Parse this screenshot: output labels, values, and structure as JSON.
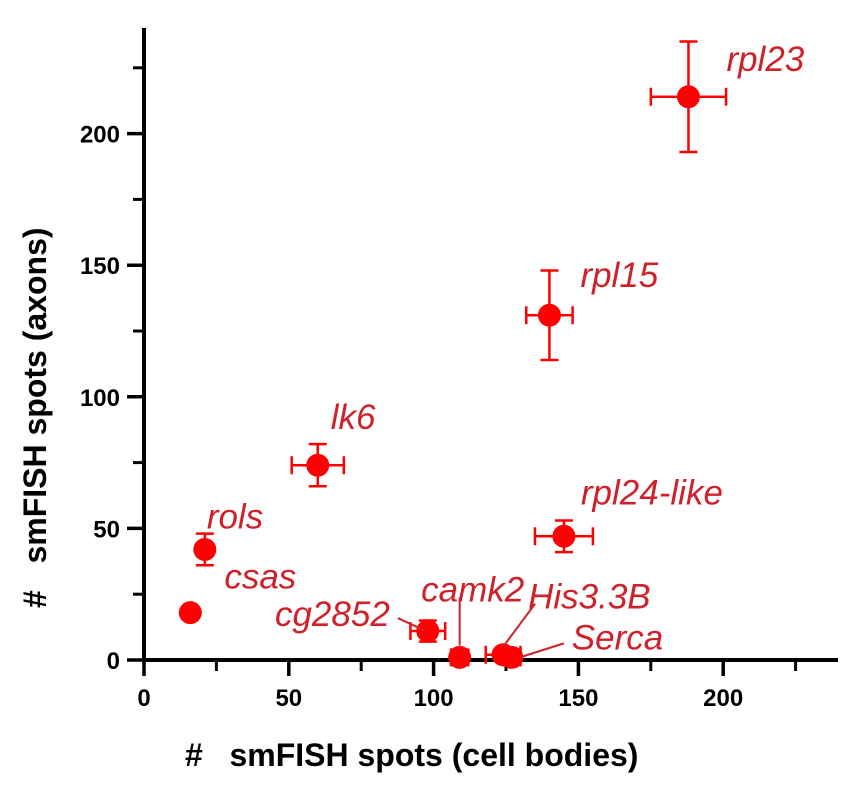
{
  "chart_data": {
    "type": "scatter",
    "title": "",
    "xlabel": "#   smFISH spots (cell bodies)",
    "ylabel": "#   smFISH spots (axons)",
    "xlim": [
      0,
      240
    ],
    "ylim": [
      0,
      240
    ],
    "x_ticks": [
      0,
      50,
      100,
      150,
      200
    ],
    "y_ticks": [
      0,
      50,
      100,
      150,
      200
    ],
    "x_minor_step": 25,
    "y_minor_step": 25,
    "grid": false,
    "point_color": "#ff0000",
    "label_color": "#d0202a",
    "points": [
      {
        "name": "rpl23",
        "x": 188,
        "y": 214,
        "x_err": 13,
        "y_err": 21
      },
      {
        "name": "rpl15",
        "x": 140,
        "y": 131,
        "x_err": 8,
        "y_err": 17
      },
      {
        "name": "lk6",
        "x": 60,
        "y": 74,
        "x_err": 9,
        "y_err": 8
      },
      {
        "name": "rpl24-like",
        "x": 145,
        "y": 47,
        "x_err": 10,
        "y_err": 6
      },
      {
        "name": "rols",
        "x": 21,
        "y": 42,
        "x_err": 0,
        "y_err": 6
      },
      {
        "name": "csas",
        "x": 16,
        "y": 18,
        "x_err": 0,
        "y_err": 0
      },
      {
        "name": "cg2852",
        "x": 98,
        "y": 11,
        "x_err": 6,
        "y_err": 4
      },
      {
        "name": "camk2",
        "x": 109,
        "y": 1,
        "x_err": 3,
        "y_err": 0
      },
      {
        "name": "His3.3B",
        "x": 124,
        "y": 2,
        "x_err": 6,
        "y_err": 0
      },
      {
        "name": "Serca",
        "x": 127,
        "y": 1,
        "x_err": 3,
        "y_err": 0
      }
    ]
  }
}
